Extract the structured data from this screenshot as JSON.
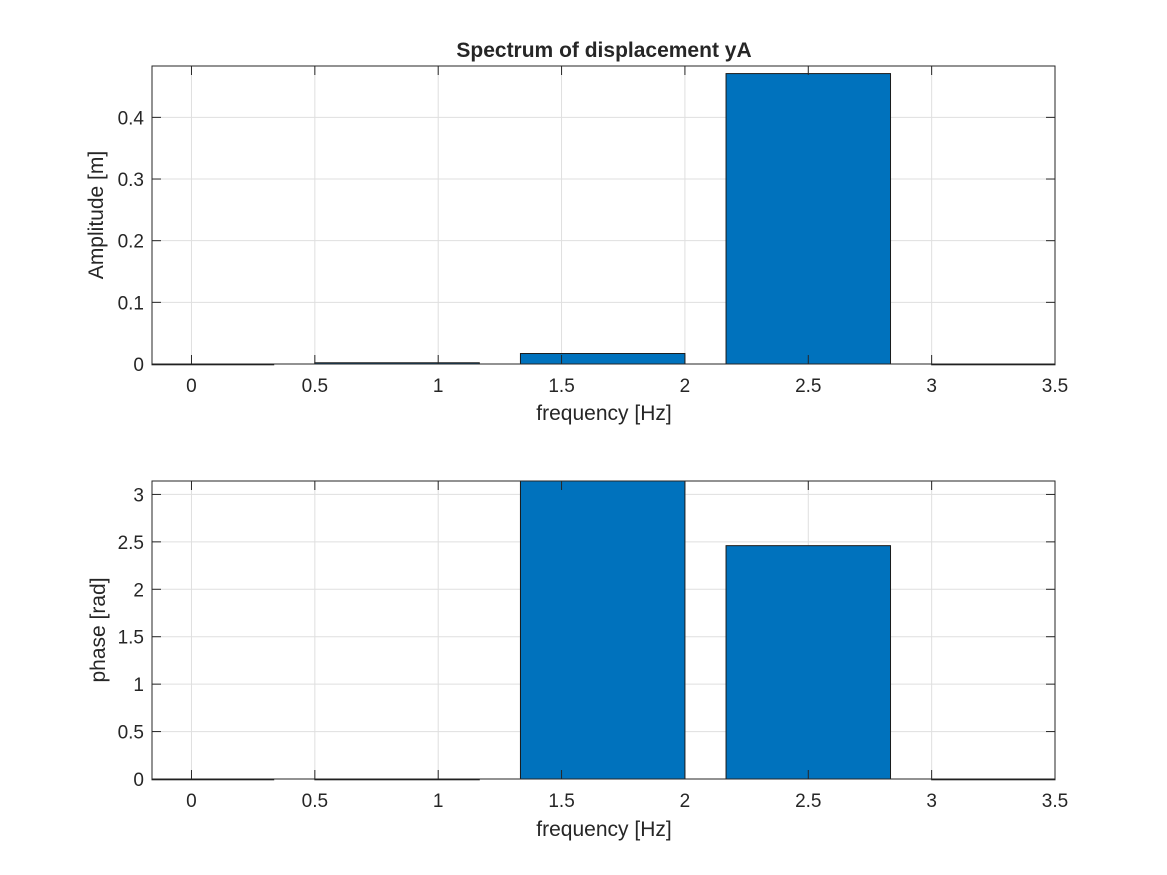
{
  "chart_data": [
    {
      "type": "bar",
      "title": "Spectrum of displacement yA",
      "xlabel": "frequency [Hz]",
      "ylabel": "Amplitude [m]",
      "xlim": [
        -0.16,
        3.5
      ],
      "ylim": [
        0,
        0.4833
      ],
      "x": [
        0.0,
        0.8333,
        1.6667,
        2.5,
        3.3333
      ],
      "values": [
        0.0,
        0.002,
        0.017,
        0.471,
        0.0
      ],
      "bar_width_fraction": 0.8,
      "xticks": [
        0,
        0.5,
        1,
        1.5,
        2,
        2.5,
        3,
        3.5
      ],
      "xtick_labels": [
        "0",
        "0.5",
        "1",
        "1.5",
        "2",
        "2.5",
        "3",
        "3.5"
      ],
      "yticks": [
        0,
        0.1,
        0.2,
        0.3,
        0.4
      ],
      "ytick_labels": [
        "0",
        "0.1",
        "0.2",
        "0.3",
        "0.4"
      ],
      "grid": true,
      "bar_color": "#0072BD"
    },
    {
      "type": "bar",
      "title": "",
      "xlabel": "frequency [Hz]",
      "ylabel": "phase [rad]",
      "xlim": [
        -0.16,
        3.5
      ],
      "ylim": [
        0,
        3.1416
      ],
      "x": [
        0.0,
        0.8333,
        1.6667,
        2.5,
        3.3333
      ],
      "values": [
        0.0,
        0.0,
        3.1416,
        2.46,
        0.0
      ],
      "bar_width_fraction": 0.8,
      "xticks": [
        0,
        0.5,
        1,
        1.5,
        2,
        2.5,
        3,
        3.5
      ],
      "xtick_labels": [
        "0",
        "0.5",
        "1",
        "1.5",
        "2",
        "2.5",
        "3",
        "3.5"
      ],
      "yticks": [
        0,
        0.5,
        1,
        1.5,
        2,
        2.5,
        3
      ],
      "ytick_labels": [
        "0",
        "0.5",
        "1",
        "1.5",
        "2",
        "2.5",
        "3"
      ],
      "grid": true,
      "bar_color": "#0072BD"
    }
  ]
}
